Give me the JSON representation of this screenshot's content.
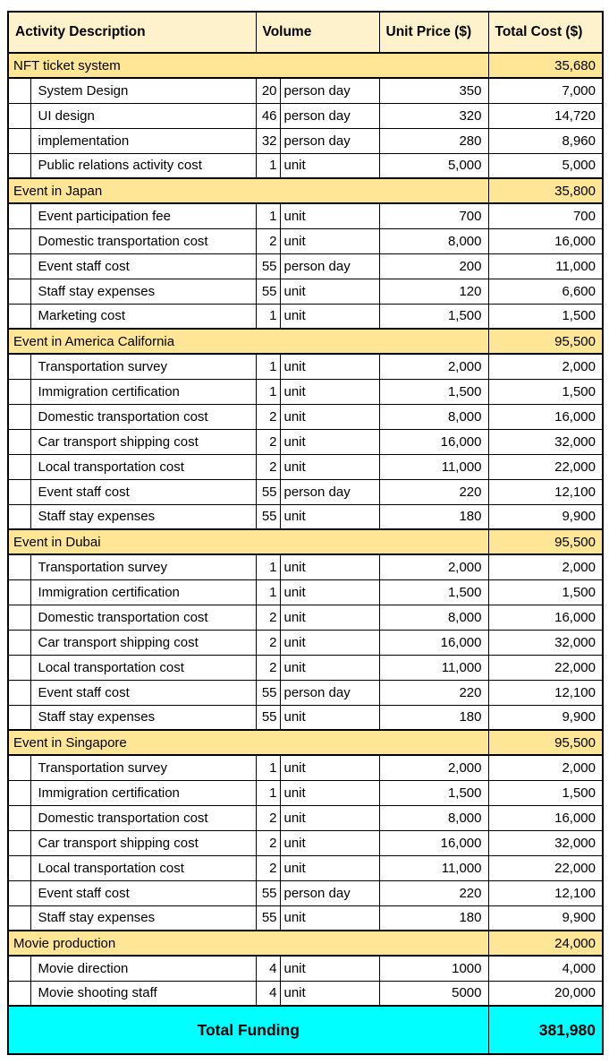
{
  "colors": {
    "header_bg": "#FDF2CC",
    "section_bg": "#FFE596",
    "footer_bg": "#00FFFF",
    "border": "#000000"
  },
  "table": {
    "headers": {
      "activity": "Activity Description",
      "volume": "Volume",
      "unit_price": "Unit Price ($)",
      "total_cost": "Total Cost ($)"
    },
    "sections": [
      {
        "label": "NFT ticket system",
        "total": "35,680",
        "rows": [
          {
            "desc": "System Design",
            "qty": "20",
            "unit": "person day",
            "price": "350",
            "total": "7,000"
          },
          {
            "desc": "UI design",
            "qty": "46",
            "unit": "person day",
            "price": "320",
            "total": "14,720"
          },
          {
            "desc": "implementation",
            "qty": "32",
            "unit": "person day",
            "price": "280",
            "total": "8,960"
          },
          {
            "desc": "Public relations activity cost",
            "qty": "1",
            "unit": "unit",
            "price": "5,000",
            "total": "5,000"
          }
        ]
      },
      {
        "label": "Event in Japan",
        "total": "35,800",
        "rows": [
          {
            "desc": "Event participation fee",
            "qty": "1",
            "unit": "unit",
            "price": "700",
            "total": "700"
          },
          {
            "desc": "Domestic transportation cost",
            "qty": "2",
            "unit": "unit",
            "price": "8,000",
            "total": "16,000"
          },
          {
            "desc": "Event staff cost",
            "qty": "55",
            "unit": "person day",
            "price": "200",
            "total": "11,000"
          },
          {
            "desc": "Staff stay expenses",
            "qty": "55",
            "unit": "unit",
            "price": "120",
            "total": "6,600"
          },
          {
            "desc": "Marketing cost",
            "qty": "1",
            "unit": "unit",
            "price": "1,500",
            "total": "1,500"
          }
        ]
      },
      {
        "label": "Event in America California",
        "total": "95,500",
        "rows": [
          {
            "desc": "Transportation survey",
            "qty": "1",
            "unit": "unit",
            "price": "2,000",
            "total": "2,000"
          },
          {
            "desc": "Immigration certification",
            "qty": "1",
            "unit": "unit",
            "price": "1,500",
            "total": "1,500"
          },
          {
            "desc": "Domestic transportation cost",
            "qty": "2",
            "unit": "unit",
            "price": "8,000",
            "total": "16,000"
          },
          {
            "desc": "Car transport shipping cost",
            "qty": "2",
            "unit": "unit",
            "price": "16,000",
            "total": "32,000"
          },
          {
            "desc": "Local transportation cost",
            "qty": "2",
            "unit": "unit",
            "price": "11,000",
            "total": "22,000"
          },
          {
            "desc": "Event staff cost",
            "qty": "55",
            "unit": "person day",
            "price": "220",
            "total": "12,100"
          },
          {
            "desc": "Staff stay expenses",
            "qty": "55",
            "unit": "unit",
            "price": "180",
            "total": "9,900"
          }
        ]
      },
      {
        "label": "Event in Dubai",
        "total": "95,500",
        "rows": [
          {
            "desc": "Transportation survey",
            "qty": "1",
            "unit": "unit",
            "price": "2,000",
            "total": "2,000"
          },
          {
            "desc": "Immigration certification",
            "qty": "1",
            "unit": "unit",
            "price": "1,500",
            "total": "1,500"
          },
          {
            "desc": "Domestic transportation cost",
            "qty": "2",
            "unit": "unit",
            "price": "8,000",
            "total": "16,000"
          },
          {
            "desc": "Car transport shipping cost",
            "qty": "2",
            "unit": "unit",
            "price": "16,000",
            "total": "32,000"
          },
          {
            "desc": "Local transportation cost",
            "qty": "2",
            "unit": "unit",
            "price": "11,000",
            "total": "22,000"
          },
          {
            "desc": "Event staff cost",
            "qty": "55",
            "unit": "person day",
            "price": "220",
            "total": "12,100"
          },
          {
            "desc": "Staff stay expenses",
            "qty": "55",
            "unit": "unit",
            "price": "180",
            "total": "9,900"
          }
        ]
      },
      {
        "label": "Event in Singapore",
        "total": "95,500",
        "rows": [
          {
            "desc": "Transportation survey",
            "qty": "1",
            "unit": "unit",
            "price": "2,000",
            "total": "2,000"
          },
          {
            "desc": "Immigration certification",
            "qty": "1",
            "unit": "unit",
            "price": "1,500",
            "total": "1,500"
          },
          {
            "desc": "Domestic transportation cost",
            "qty": "2",
            "unit": "unit",
            "price": "8,000",
            "total": "16,000"
          },
          {
            "desc": "Car transport shipping cost",
            "qty": "2",
            "unit": "unit",
            "price": "16,000",
            "total": "32,000"
          },
          {
            "desc": "Local transportation cost",
            "qty": "2",
            "unit": "unit",
            "price": "11,000",
            "total": "22,000"
          },
          {
            "desc": "Event staff cost",
            "qty": "55",
            "unit": "person day",
            "price": "220",
            "total": "12,100"
          },
          {
            "desc": "Staff stay expenses",
            "qty": "55",
            "unit": "unit",
            "price": "180",
            "total": "9,900"
          }
        ]
      },
      {
        "label": "Movie production",
        "total": "24,000",
        "rows": [
          {
            "desc": "Movie direction",
            "qty": "4",
            "unit": "unit",
            "price": "1000",
            "total": "4,000"
          },
          {
            "desc": "Movie shooting staff",
            "qty": "4",
            "unit": "unit",
            "price": "5000",
            "total": "20,000"
          }
        ]
      }
    ],
    "footer": {
      "label": "Total Funding",
      "total": "381,980"
    }
  }
}
